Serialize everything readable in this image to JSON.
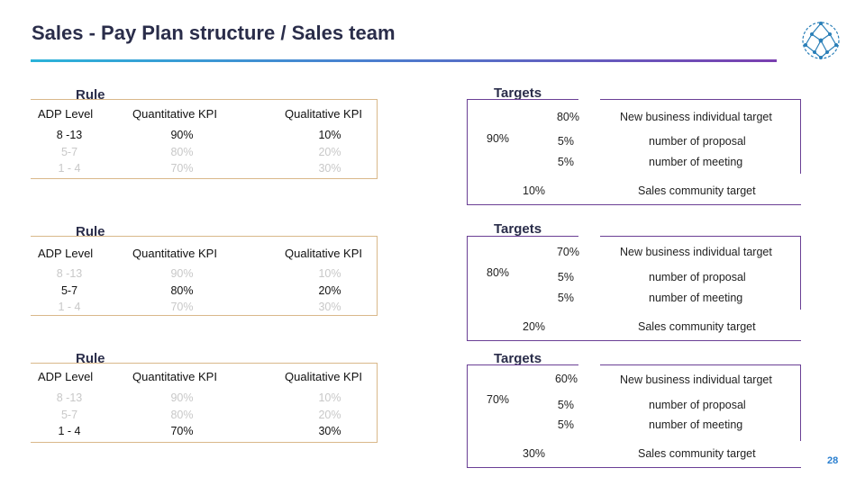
{
  "header": {
    "title": "Sales - Pay Plan structure / Sales team",
    "page_number": "28"
  },
  "colors": {
    "title": "#2a2d4a",
    "accent_line_start": "#2bb3d9",
    "accent_line_end": "#7a3fb0",
    "rule_border": "#d9b88a",
    "targets_border": "#6a3f95"
  },
  "columns": {
    "rule_label": "Rule",
    "adp_level": "ADP Level",
    "quantitative": "Quantitative KPI",
    "qualitative": "Qualitative KPI",
    "targets_label": "Targets"
  },
  "blocks": [
    {
      "adp": [
        "8 -13",
        "5-7",
        "1 - 4"
      ],
      "quant": [
        "90%",
        "80%",
        "70%"
      ],
      "qual": [
        "10%",
        "20%",
        "30%"
      ],
      "active_row": 0,
      "main_pct": "90%",
      "rows": [
        {
          "pct": "80%",
          "text": "New business individual target"
        },
        {
          "pct": "5%",
          "text": "number of proposal"
        },
        {
          "pct": "5%",
          "text": "number of meeting"
        }
      ],
      "community_pct": "10%",
      "community_text": "Sales community target"
    },
    {
      "adp": [
        "8 -13",
        "5-7",
        "1 - 4"
      ],
      "quant": [
        "90%",
        "80%",
        "70%"
      ],
      "qual": [
        "10%",
        "20%",
        "30%"
      ],
      "active_row": 1,
      "main_pct": "80%",
      "rows": [
        {
          "pct": "70%",
          "text": "New business individual target"
        },
        {
          "pct": "5%",
          "text": "number of proposal"
        },
        {
          "pct": "5%",
          "text": "number of meeting"
        }
      ],
      "community_pct": "20%",
      "community_text": "Sales community target"
    },
    {
      "adp": [
        "8 -13",
        "5-7",
        "1 - 4"
      ],
      "quant": [
        "90%",
        "80%",
        "70%"
      ],
      "qual": [
        "10%",
        "20%",
        "30%"
      ],
      "active_row": 2,
      "main_pct": "70%",
      "rows": [
        {
          "pct": "60%",
          "text": "New business individual target"
        },
        {
          "pct": "5%",
          "text": "number of proposal"
        },
        {
          "pct": "5%",
          "text": "number of meeting"
        }
      ],
      "community_pct": "30%",
      "community_text": "Sales community target"
    }
  ]
}
